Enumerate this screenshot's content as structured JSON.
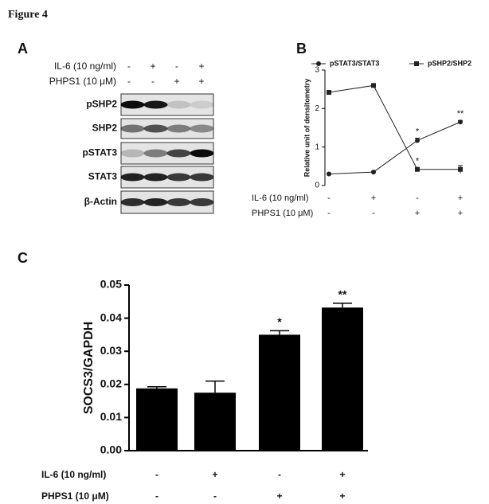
{
  "figure_title": "Figure 4",
  "panel_a": {
    "label": "A",
    "conditions": [
      {
        "name": "IL-6 (10 ng/ml)",
        "signs": [
          "-",
          "+",
          "-",
          "+"
        ]
      },
      {
        "name": "PHPS1 (10 μM)",
        "signs": [
          "-",
          "-",
          "+",
          "+"
        ]
      }
    ],
    "blots": [
      "pSHP2",
      "SHP2",
      "pSTAT3",
      "STAT3",
      "β-Actin"
    ]
  },
  "chart_data": [
    {
      "type": "line",
      "panel_label": "B",
      "y_label": "Relative unit of densitometry",
      "categories": [
        null,
        null,
        null,
        null
      ],
      "ylim": [
        0,
        3
      ],
      "yticks": [
        0,
        1,
        2,
        3
      ],
      "series": [
        {
          "name": "pSTAT3/STAT3",
          "color": "#222222",
          "marker": "circle",
          "values": [
            0.3,
            0.35,
            1.17,
            1.65
          ],
          "errors": [
            0.02,
            0.02,
            0.06,
            0.04
          ],
          "significance": [
            null,
            null,
            "*",
            "**"
          ]
        },
        {
          "name": "pSHP2/SHP2",
          "color": "#222222",
          "marker": "square",
          "values": [
            2.42,
            2.6,
            0.42,
            0.42
          ],
          "errors": [
            0.05,
            0.02,
            0.04,
            0.1
          ],
          "significance": [
            null,
            null,
            "*",
            null
          ]
        }
      ],
      "conditions": [
        {
          "name": "IL-6 (10 ng/ml)",
          "signs": [
            "-",
            "+",
            "-",
            "+"
          ]
        },
        {
          "name": "PHPS1 (10 μM)",
          "signs": [
            "-",
            "-",
            "+",
            "+"
          ]
        }
      ]
    },
    {
      "type": "bar",
      "panel_label": "C",
      "y_label": "SOCS3/GAPDH",
      "color": "#000000",
      "categories": [
        null,
        null,
        null,
        null
      ],
      "values": [
        0.0188,
        0.0175,
        0.035,
        0.0432
      ],
      "errors": [
        0.0005,
        0.0035,
        0.0012,
        0.0013
      ],
      "significance": [
        null,
        null,
        "*",
        "**"
      ],
      "ylim": [
        0,
        0.05
      ],
      "yticks": [
        {
          "value": 0,
          "label": "0.00"
        },
        {
          "value": 0.01,
          "label": "0.01"
        },
        {
          "value": 0.02,
          "label": "0.02"
        },
        {
          "value": 0.03,
          "label": "0.03"
        },
        {
          "value": 0.04,
          "label": "0.04"
        },
        {
          "value": 0.05,
          "label": "0.05"
        }
      ],
      "conditions": [
        {
          "name": "IL-6 (10 ng/ml)",
          "signs": [
            "-",
            "+",
            "-",
            "+"
          ]
        },
        {
          "name": "PHPS1 (10 μM)",
          "signs": [
            "-",
            "-",
            "+",
            "+"
          ]
        }
      ]
    }
  ]
}
